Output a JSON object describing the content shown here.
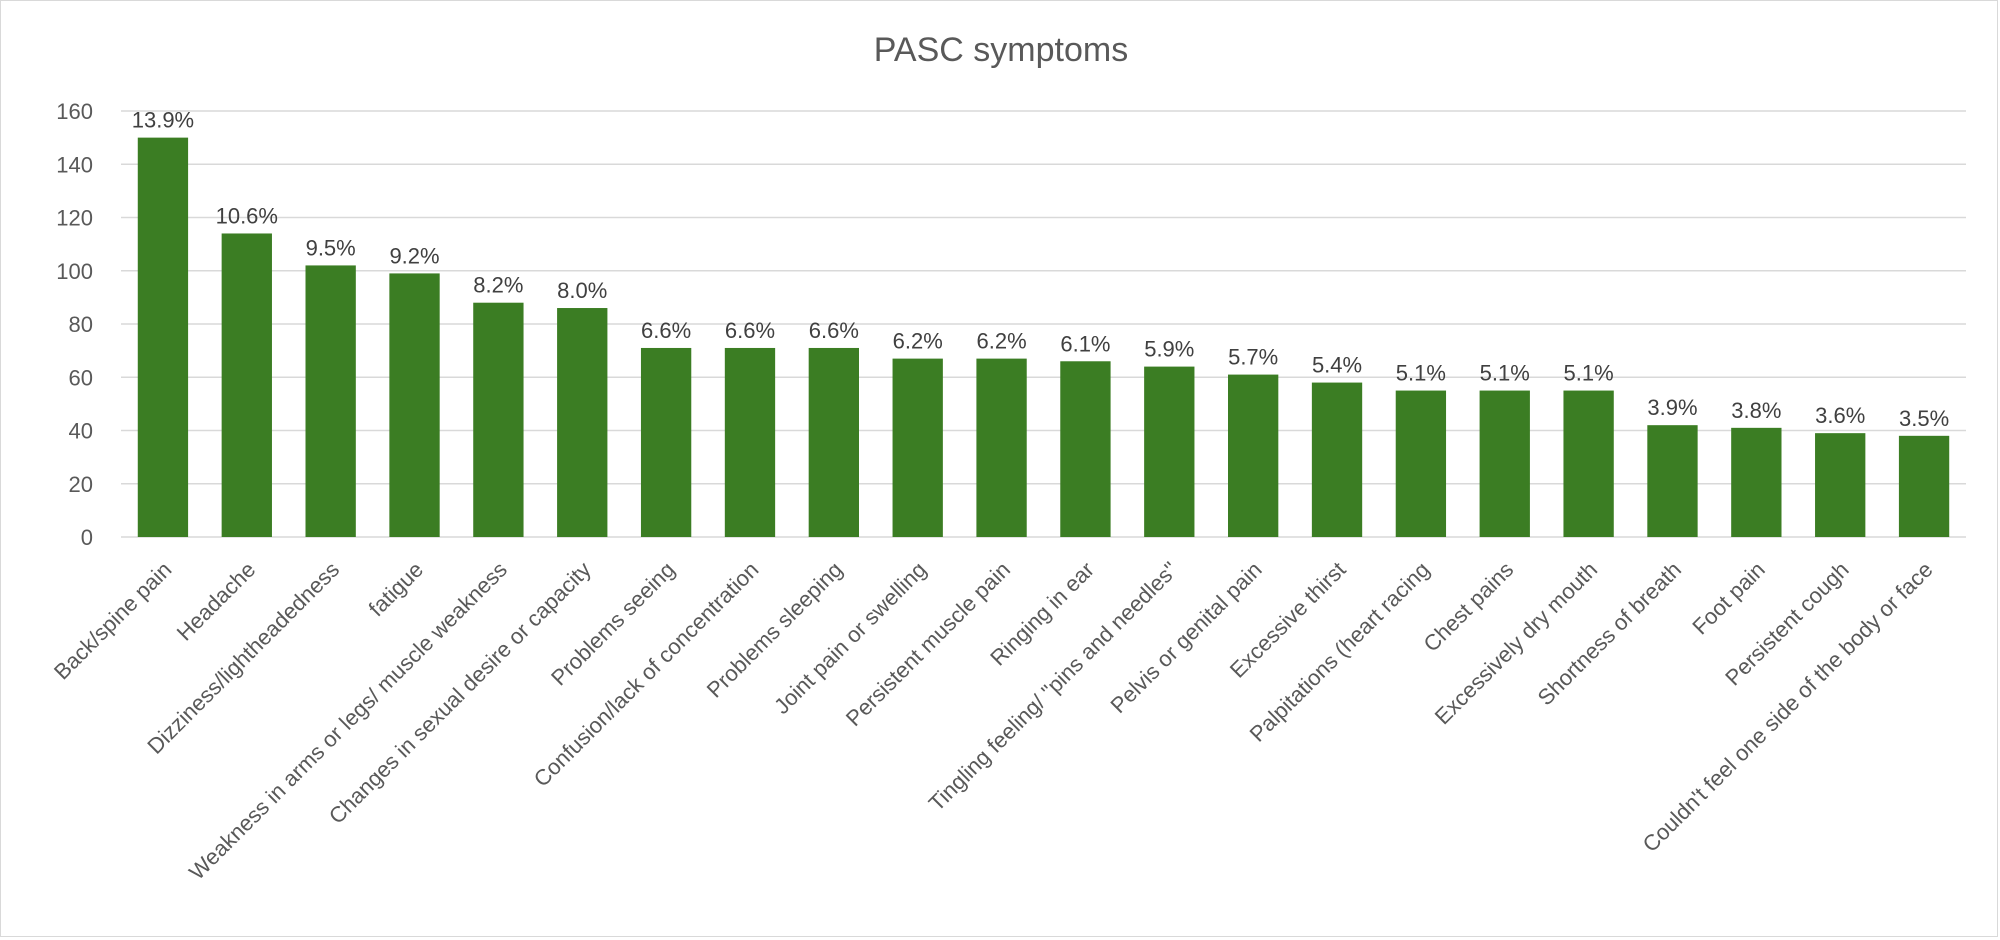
{
  "chart_data": {
    "type": "bar",
    "title": "PASC symptoms",
    "xlabel": "",
    "ylabel": "",
    "ylim": [
      0,
      160
    ],
    "yticks": [
      0,
      20,
      40,
      60,
      80,
      100,
      120,
      140,
      160
    ],
    "grid": true,
    "legend": "none",
    "bar_color": "#3b7d23",
    "categories": [
      "Back/spine pain",
      "Headache",
      "Dizziness/lightheadedness",
      "fatigue",
      "Weakness in arms or legs/ muscle weakness",
      "Changes in sexual desire or capacity",
      "Problems seeing",
      "Confusion/lack of concentration",
      "Problems sleeping",
      "Joint pain or swelling",
      "Persistent muscle pain",
      "Ringing in ear",
      "Tingling feeling/ \"pins and needles\"",
      "Pelvis or genital pain",
      "Excessive thirst",
      "Palpitations (heart racing",
      "Chest pains",
      "Excessively dry mouth",
      "Shortness of breath",
      "Foot pain",
      "Persistent cough",
      "Couldn't feel one side of the body or face"
    ],
    "values": [
      150,
      114,
      102,
      99,
      88,
      86,
      71,
      71,
      71,
      67,
      67,
      66,
      64,
      61,
      58,
      55,
      55,
      55,
      42,
      41,
      39,
      38
    ],
    "data_labels": [
      "13.9%",
      "10.6%",
      "9.5%",
      "9.2%",
      "8.2%",
      "8.0%",
      "6.6%",
      "6.6%",
      "6.6%",
      "6.2%",
      "6.2%",
      "6.1%",
      "5.9%",
      "5.7%",
      "5.4%",
      "5.1%",
      "5.1%",
      "5.1%",
      "3.9%",
      "3.8%",
      "3.6%",
      "3.5%"
    ]
  }
}
